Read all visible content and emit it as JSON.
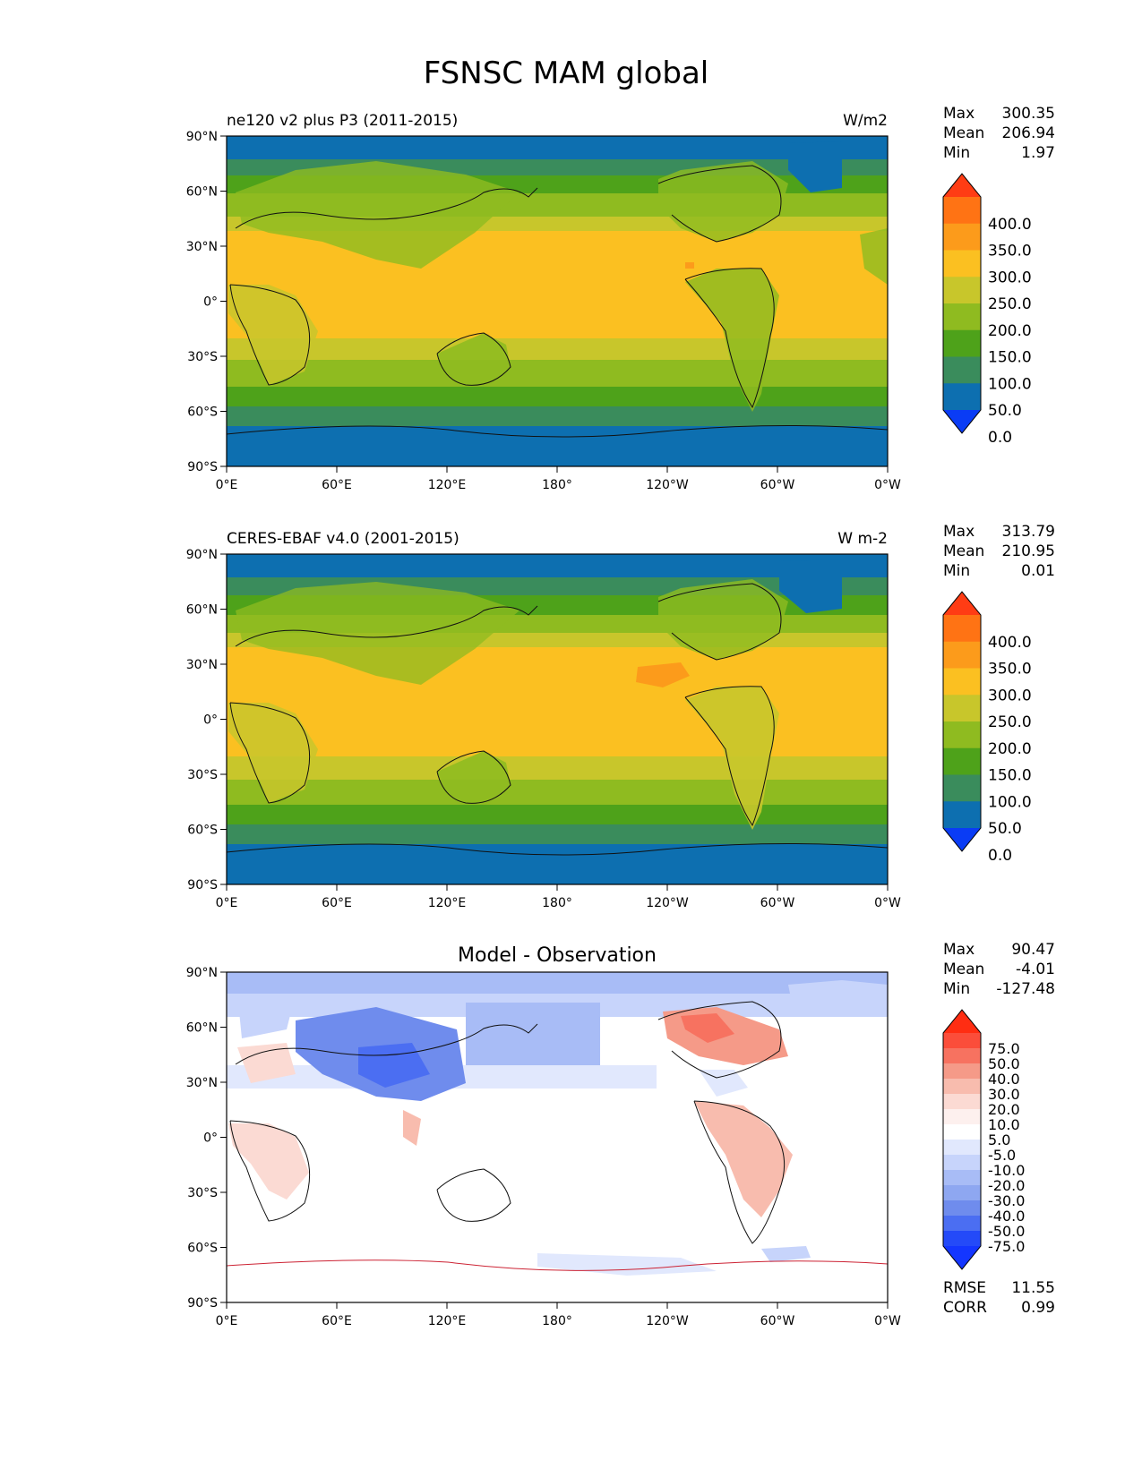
{
  "title": "FSNSC MAM global",
  "panels": [
    {
      "left_title": "ne120 v2 plus P3 (2011-2015)",
      "center_title": "",
      "units": "W/m2",
      "stats": [
        [
          "Max",
          "300.35"
        ],
        [
          "Mean",
          "206.94"
        ],
        [
          "Min",
          "1.97"
        ]
      ],
      "colorbar": {
        "labels": [
          "400.0",
          "350.0",
          "300.0",
          "250.0",
          "200.0",
          "150.0",
          "100.0",
          "50.0",
          "0.0"
        ],
        "colors": [
          "#ff3c14",
          "#ff7314",
          "#fc9b1b",
          "#fbc021",
          "#c8c62b",
          "#8fbb20",
          "#4ea21a",
          "#3a8c5c",
          "#0d6fb0",
          "#0a3cf5"
        ]
      },
      "rmse_corr": null
    },
    {
      "left_title": "CERES-EBAF v4.0 (2001-2015)",
      "center_title": "",
      "units": "W m-2",
      "stats": [
        [
          "Max",
          "313.79"
        ],
        [
          "Mean",
          "210.95"
        ],
        [
          "Min",
          "0.01"
        ]
      ],
      "colorbar": {
        "labels": [
          "400.0",
          "350.0",
          "300.0",
          "250.0",
          "200.0",
          "150.0",
          "100.0",
          "50.0",
          "0.0"
        ],
        "colors": [
          "#ff3c14",
          "#ff7314",
          "#fc9b1b",
          "#fbc021",
          "#c8c62b",
          "#8fbb20",
          "#4ea21a",
          "#3a8c5c",
          "#0d6fb0",
          "#0a3cf5"
        ]
      },
      "rmse_corr": null
    },
    {
      "left_title": "",
      "center_title": "Model - Observation",
      "units": "",
      "stats": [
        [
          "Max",
          "90.47"
        ],
        [
          "Mean",
          "-4.01"
        ],
        [
          "Min",
          "-127.48"
        ]
      ],
      "colorbar": {
        "labels": [
          "75.0",
          "50.0",
          "40.0",
          "30.0",
          "20.0",
          "10.0",
          "5.0",
          "-5.0",
          "-10.0",
          "-20.0",
          "-30.0",
          "-40.0",
          "-50.0",
          "-75.0"
        ],
        "colors": [
          "#ff2d12",
          "#fb4d3a",
          "#f77260",
          "#f59a88",
          "#f8bcae",
          "#fbdad3",
          "#fdf0ee",
          "#ffffff",
          "#e1e8fd",
          "#c7d4fb",
          "#a8bcf6",
          "#8ea7f1",
          "#6f8ced",
          "#4b6ef2",
          "#244af8",
          "#1436ff"
        ]
      },
      "rmse_corr": [
        [
          "RMSE",
          "11.55"
        ],
        [
          "CORR",
          "0.99"
        ]
      ]
    }
  ],
  "lat_ticks": [
    "90°N",
    "60°N",
    "30°N",
    "0°",
    "30°S",
    "60°S",
    "90°S"
  ],
  "lon_ticks": [
    "0°E",
    "60°E",
    "120°E",
    "180°",
    "120°W",
    "60°W",
    "0°W"
  ]
}
